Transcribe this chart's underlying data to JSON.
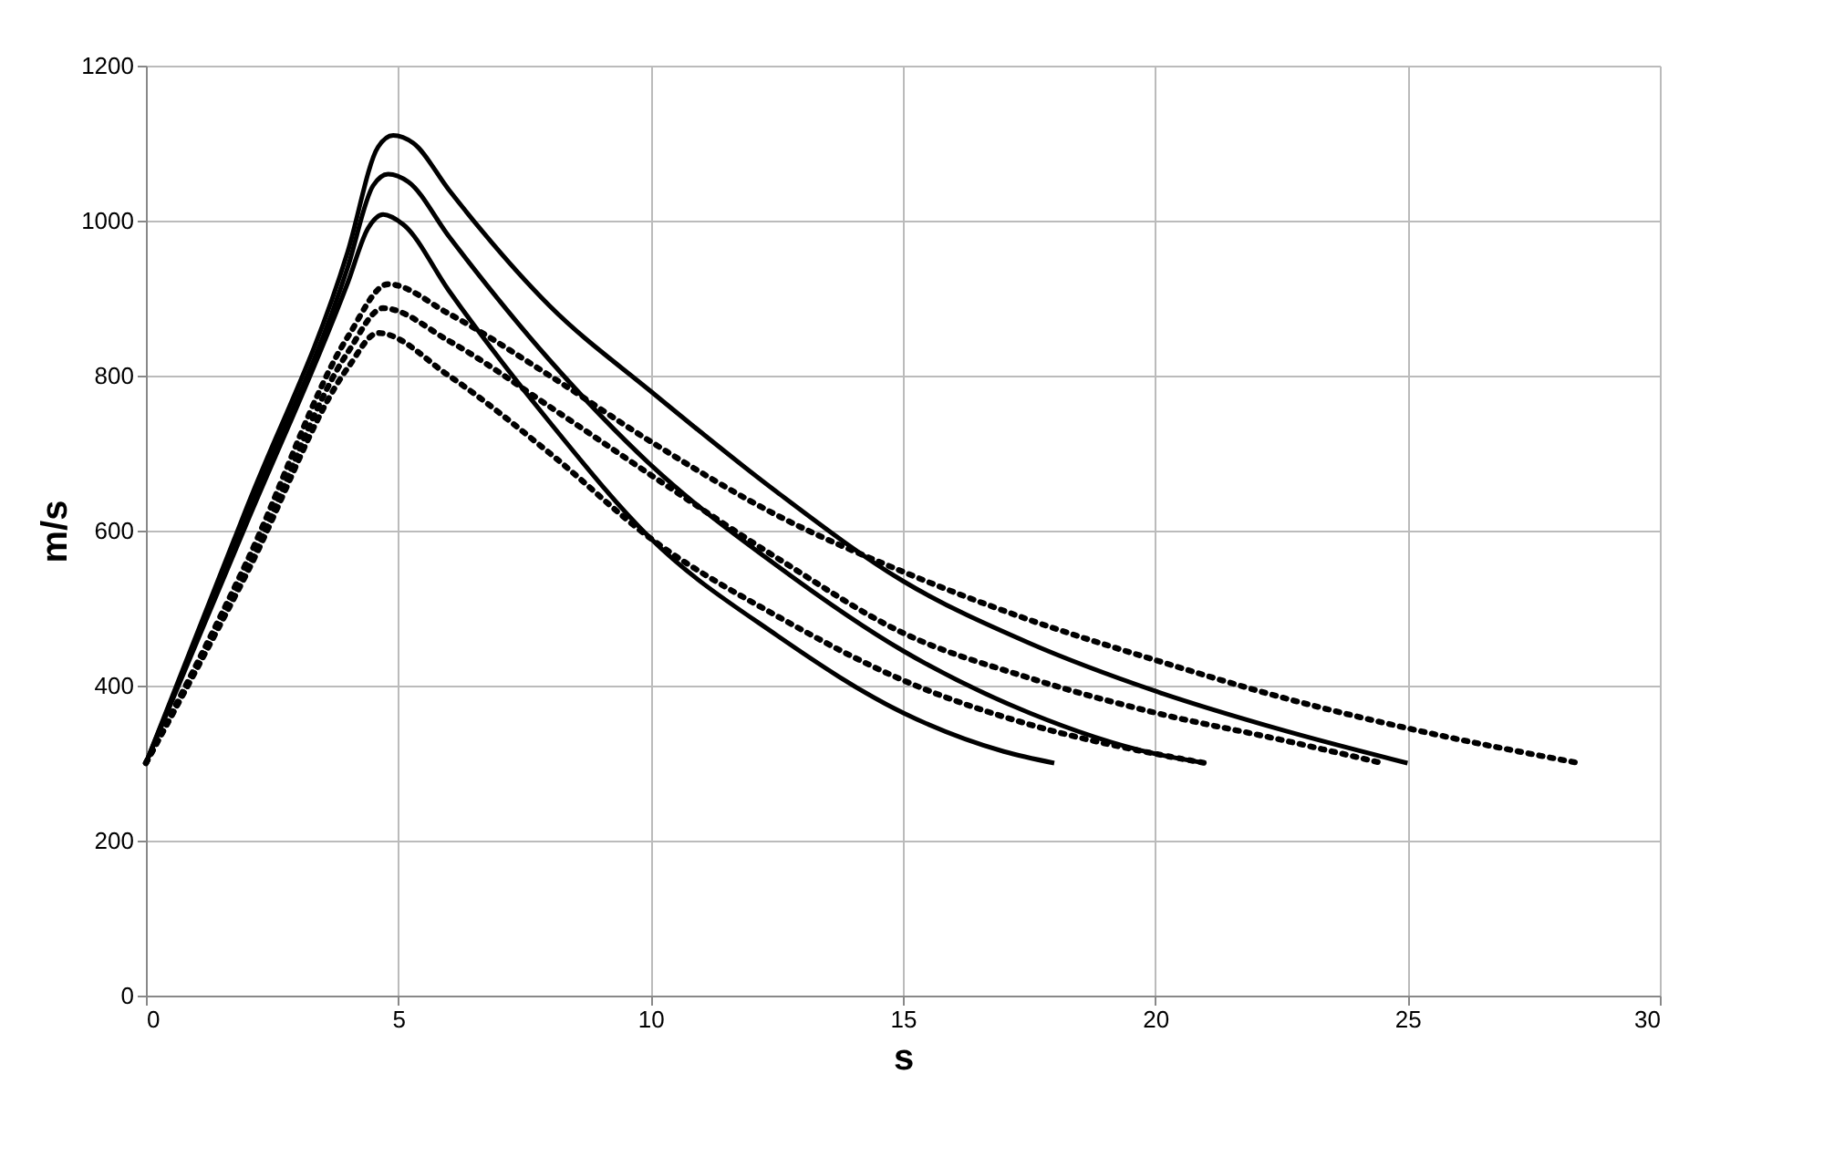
{
  "chart_data": {
    "type": "line",
    "xlabel": "s",
    "ylabel": "m/s",
    "xlim": [
      0,
      30
    ],
    "xticks": [
      0,
      5,
      10,
      15,
      20,
      25,
      30
    ],
    "ylim": [
      0,
      1200
    ],
    "yticks": [
      0,
      200,
      400,
      600,
      800,
      1000,
      1200
    ],
    "grid": true,
    "marker": "none",
    "series": [
      {
        "color": "#000000",
        "line_style": "solid",
        "x": [
          0,
          2,
          4,
          4.6,
          4.9,
          5.3,
          6,
          8,
          10,
          12.5,
          15,
          17.5,
          20,
          22.5,
          25
        ],
        "values": [
          300,
          630,
          960,
          1095,
          1110,
          1100,
          1040,
          890,
          780,
          650,
          535,
          455,
          393,
          343,
          300
        ]
      },
      {
        "color": "#000000",
        "line_style": "solid",
        "x": [
          0,
          2,
          4,
          4.5,
          4.8,
          5.2,
          6,
          8,
          10,
          12.5,
          15,
          17.5,
          20,
          21
        ],
        "values": [
          300,
          620,
          940,
          1045,
          1060,
          1050,
          980,
          820,
          685,
          555,
          445,
          365,
          312,
          300
        ]
      },
      {
        "color": "#000000",
        "line_style": "solid",
        "x": [
          0,
          2,
          4,
          4.4,
          4.7,
          5.1,
          6,
          8,
          10,
          12.5,
          15,
          17,
          18
        ],
        "values": [
          300,
          610,
          920,
          990,
          1008,
          995,
          910,
          740,
          590,
          465,
          365,
          315,
          300
        ]
      },
      {
        "color": "#000000",
        "line_style": "dotted",
        "x": [
          0,
          2,
          4,
          4.8,
          6,
          8,
          10,
          12.5,
          15,
          17.5,
          20,
          22.5,
          25,
          28.4
        ],
        "values": [
          300,
          560,
          850,
          918,
          880,
          800,
          715,
          620,
          547,
          485,
          433,
          385,
          345,
          300
        ]
      },
      {
        "color": "#000000",
        "line_style": "dotted",
        "x": [
          0,
          2,
          4,
          4.7,
          6,
          8,
          10,
          12.5,
          15,
          17.5,
          20,
          22.5,
          24.5
        ],
        "values": [
          300,
          550,
          830,
          887,
          845,
          760,
          672,
          565,
          468,
          410,
          365,
          330,
          300
        ]
      },
      {
        "color": "#000000",
        "line_style": "dotted",
        "x": [
          0,
          2,
          4,
          4.6,
          6,
          8,
          10,
          12.5,
          15,
          17.5,
          20,
          21
        ],
        "values": [
          300,
          545,
          810,
          855,
          800,
          700,
          590,
          490,
          407,
          350,
          312,
          300
        ]
      }
    ]
  }
}
